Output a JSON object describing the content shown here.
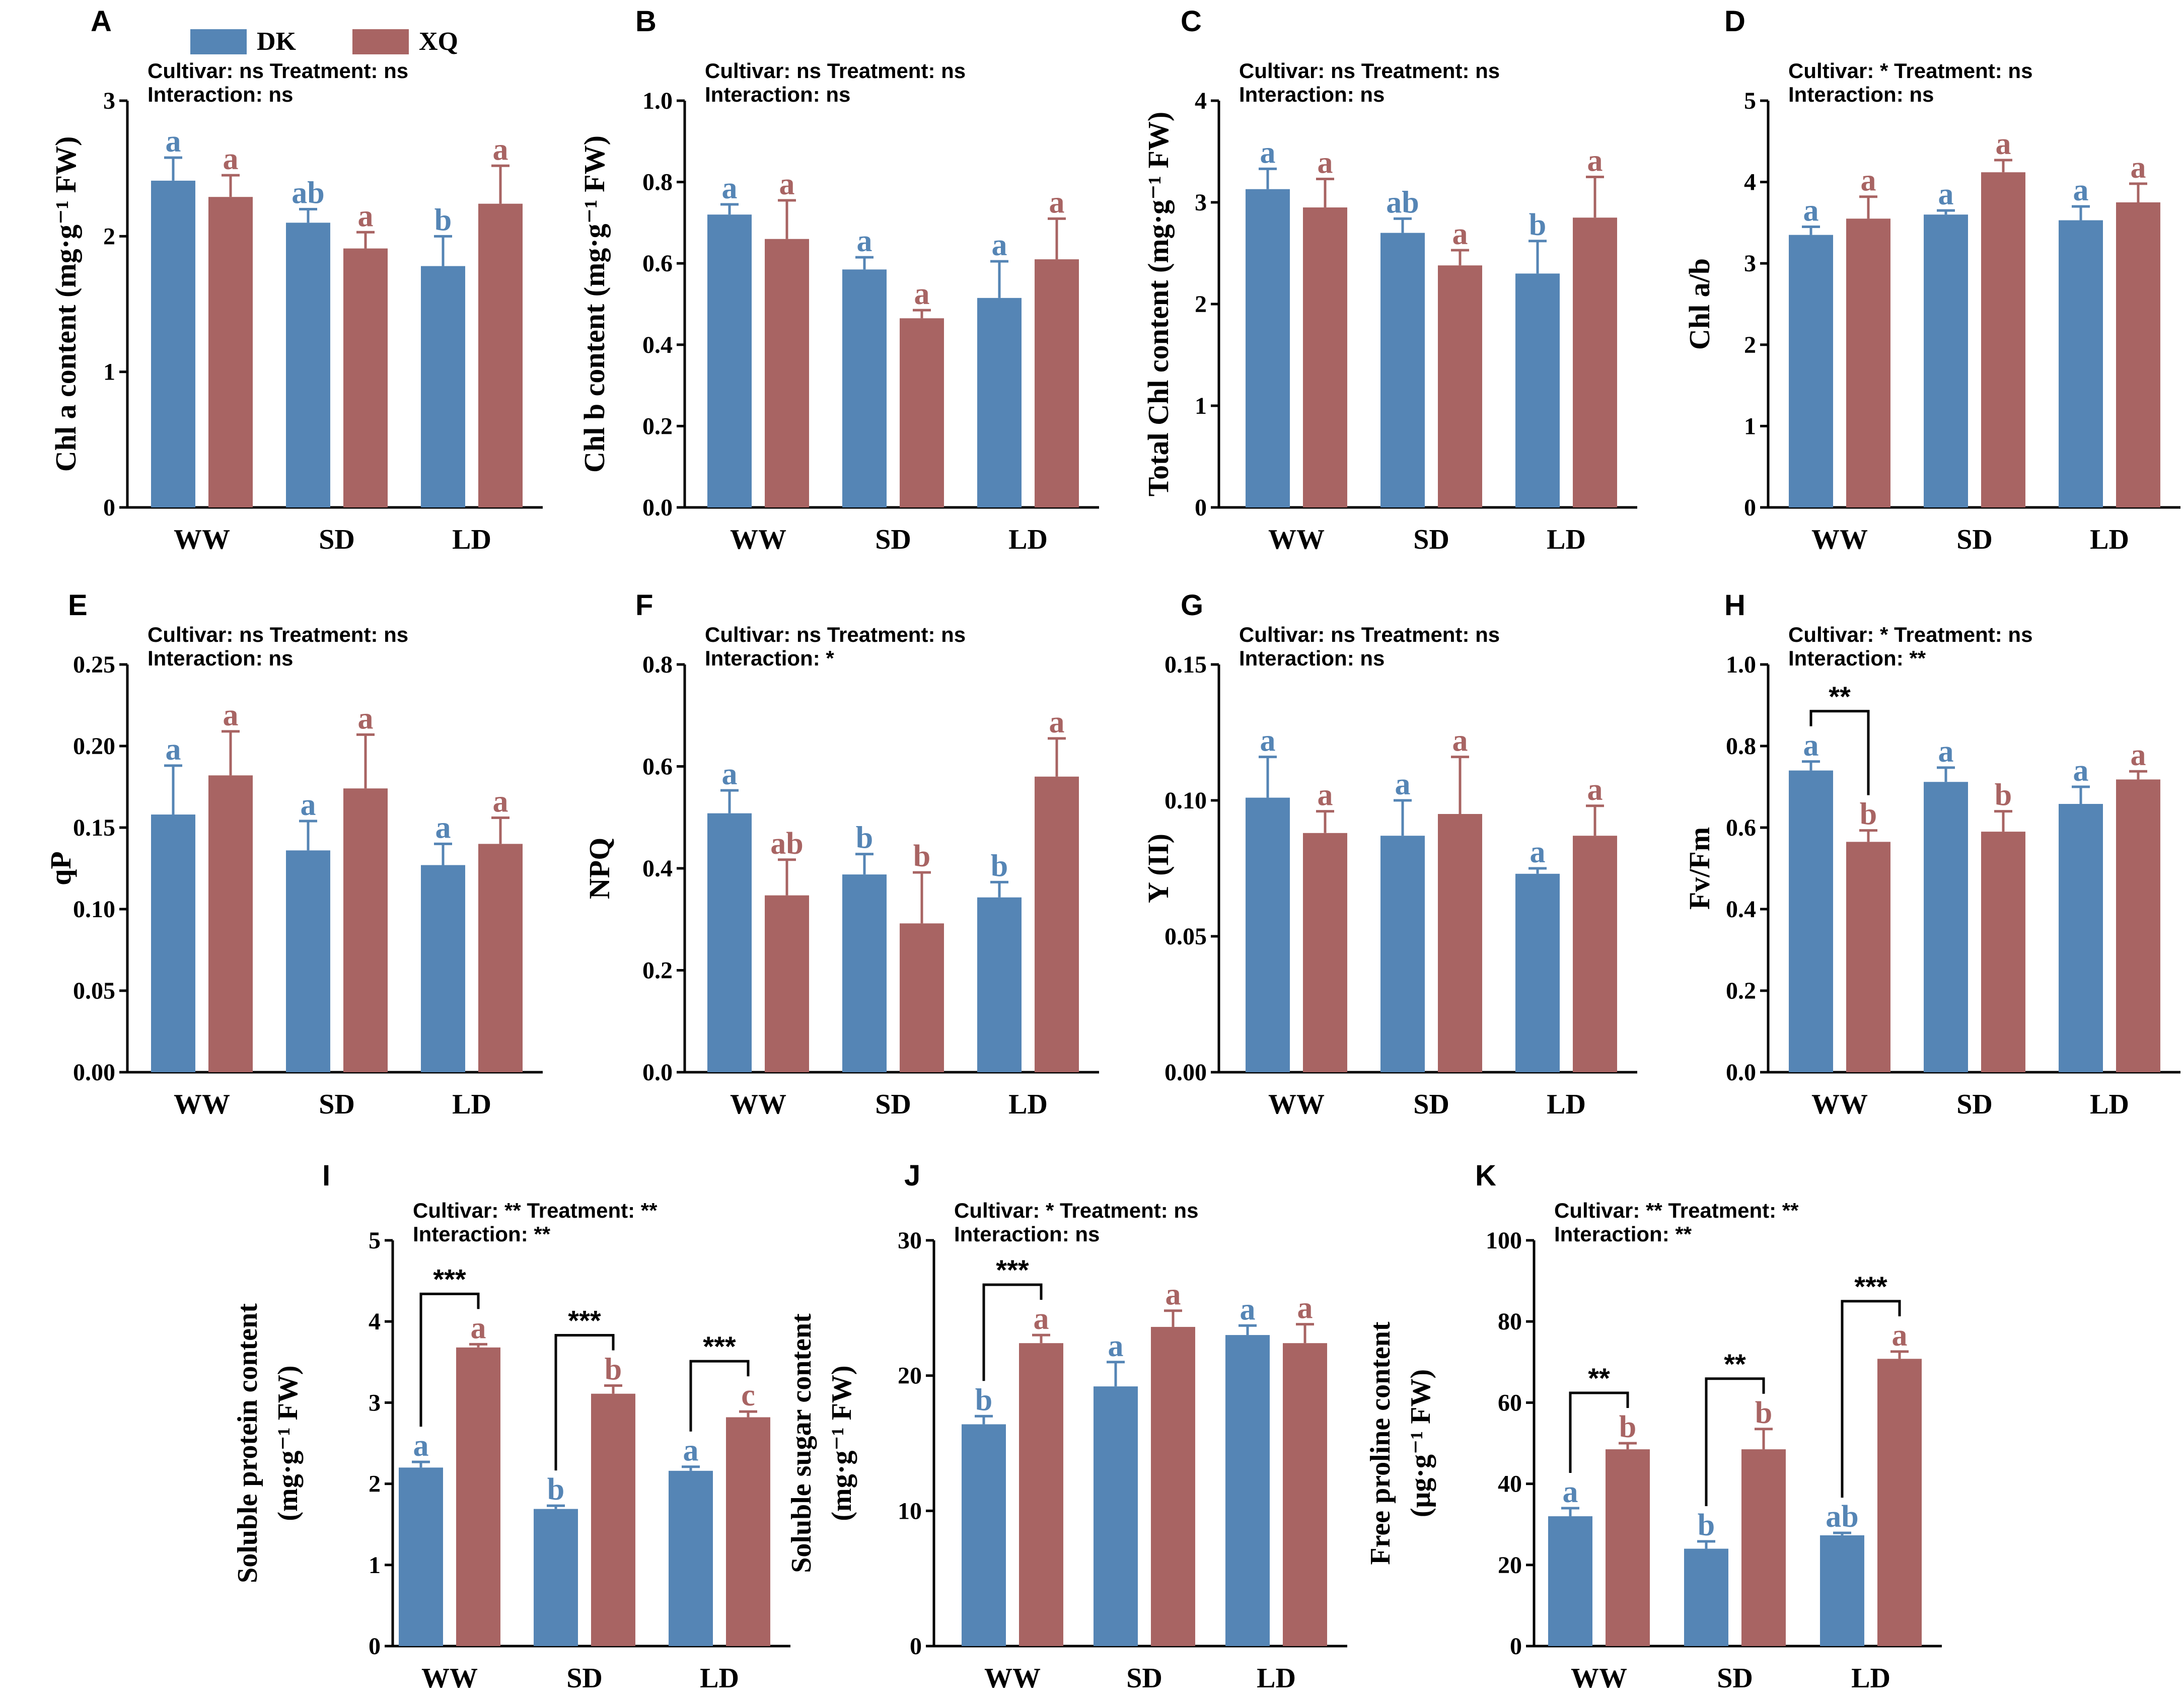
{
  "colors": {
    "DK": "#5585b5",
    "XQ": "#a86463",
    "axis": "#000000"
  },
  "legend": {
    "items": [
      {
        "key": "DK",
        "label": "DK"
      },
      {
        "key": "XQ",
        "label": "XQ"
      }
    ]
  },
  "chart_data": [
    {
      "type": "bar",
      "panel": "A",
      "ylabel": "Chl a content (mg·g⁻¹ FW)",
      "categories": [
        "WW",
        "SD",
        "LD"
      ],
      "ylim": [
        0,
        3
      ],
      "yticks": [
        "0",
        "1",
        "2",
        "3"
      ],
      "stats": [
        "Cultivar: ns  Treatment: ns",
        "Interaction: ns"
      ],
      "series": [
        {
          "name": "DK",
          "values": [
            2.41,
            2.1,
            1.78
          ],
          "errors": [
            0.17,
            0.1,
            0.22
          ],
          "letters": [
            "a",
            "ab",
            "b"
          ]
        },
        {
          "name": "XQ",
          "values": [
            2.29,
            1.91,
            2.24
          ],
          "errors": [
            0.16,
            0.12,
            0.28
          ],
          "letters": [
            "a",
            "a",
            "a"
          ]
        }
      ],
      "comparisons": []
    },
    {
      "type": "bar",
      "panel": "B",
      "ylabel": "Chl b content (mg·g⁻¹ FW)",
      "categories": [
        "WW",
        "SD",
        "LD"
      ],
      "ylim": [
        0,
        1
      ],
      "yticks": [
        "0.0",
        "0.2",
        "0.4",
        "0.6",
        "0.8",
        "1.0"
      ],
      "stats": [
        "Cultivar: ns  Treatment: ns",
        "Interaction: ns"
      ],
      "series": [
        {
          "name": "DK",
          "values": [
            0.72,
            0.585,
            0.515
          ],
          "errors": [
            0.025,
            0.03,
            0.09
          ],
          "letters": [
            "a",
            "a",
            "a"
          ]
        },
        {
          "name": "XQ",
          "values": [
            0.66,
            0.465,
            0.61
          ],
          "errors": [
            0.095,
            0.02,
            0.1
          ],
          "letters": [
            "a",
            "a",
            "a"
          ]
        }
      ],
      "comparisons": []
    },
    {
      "type": "bar",
      "panel": "C",
      "ylabel": "Total Chl content (mg·g⁻¹ FW)",
      "categories": [
        "WW",
        "SD",
        "LD"
      ],
      "ylim": [
        0,
        4
      ],
      "yticks": [
        "0",
        "1",
        "2",
        "3",
        "4"
      ],
      "stats": [
        "Cultivar: ns  Treatment: ns",
        "Interaction: ns"
      ],
      "series": [
        {
          "name": "DK",
          "values": [
            3.13,
            2.7,
            2.3
          ],
          "errors": [
            0.2,
            0.14,
            0.32
          ],
          "letters": [
            "a",
            "ab",
            "b"
          ]
        },
        {
          "name": "XQ",
          "values": [
            2.95,
            2.38,
            2.85
          ],
          "errors": [
            0.28,
            0.15,
            0.4
          ],
          "letters": [
            "a",
            "a",
            "a"
          ]
        }
      ],
      "comparisons": []
    },
    {
      "type": "bar",
      "panel": "D",
      "ylabel": "Chl a/b",
      "categories": [
        "WW",
        "SD",
        "LD"
      ],
      "ylim": [
        0,
        5
      ],
      "yticks": [
        "0",
        "1",
        "2",
        "3",
        "4",
        "5"
      ],
      "stats": [
        "Cultivar: *  Treatment: ns",
        "Interaction: ns"
      ],
      "series": [
        {
          "name": "DK",
          "values": [
            3.35,
            3.6,
            3.53
          ],
          "errors": [
            0.1,
            0.05,
            0.17
          ],
          "letters": [
            "a",
            "a",
            "a"
          ]
        },
        {
          "name": "XQ",
          "values": [
            3.55,
            4.12,
            3.75
          ],
          "errors": [
            0.27,
            0.15,
            0.23
          ],
          "letters": [
            "a",
            "a",
            "a"
          ]
        }
      ],
      "comparisons": []
    },
    {
      "type": "bar",
      "panel": "E",
      "ylabel": "qP",
      "categories": [
        "WW",
        "SD",
        "LD"
      ],
      "ylim": [
        0,
        0.25
      ],
      "yticks": [
        "0.00",
        "0.05",
        "0.10",
        "0.15",
        "0.20",
        "0.25"
      ],
      "stats": [
        "Cultivar: ns  Treatment: ns",
        "Interaction: ns"
      ],
      "series": [
        {
          "name": "DK",
          "values": [
            0.158,
            0.136,
            0.127
          ],
          "errors": [
            0.03,
            0.018,
            0.013
          ],
          "letters": [
            "a",
            "a",
            "a"
          ]
        },
        {
          "name": "XQ",
          "values": [
            0.182,
            0.174,
            0.14
          ],
          "errors": [
            0.027,
            0.033,
            0.016
          ],
          "letters": [
            "a",
            "a",
            "a"
          ]
        }
      ],
      "comparisons": []
    },
    {
      "type": "bar",
      "panel": "F",
      "ylabel": "NPQ",
      "categories": [
        "WW",
        "SD",
        "LD"
      ],
      "ylim": [
        0,
        0.8
      ],
      "yticks": [
        "0.0",
        "0.2",
        "0.4",
        "0.6",
        "0.8"
      ],
      "stats": [
        "Cultivar: ns  Treatment: ns",
        "Interaction: *"
      ],
      "series": [
        {
          "name": "DK",
          "values": [
            0.508,
            0.388,
            0.343
          ],
          "errors": [
            0.045,
            0.04,
            0.03
          ],
          "letters": [
            "a",
            "b",
            "b"
          ]
        },
        {
          "name": "XQ",
          "values": [
            0.347,
            0.292,
            0.58
          ],
          "errors": [
            0.07,
            0.1,
            0.075
          ],
          "letters": [
            "ab",
            "b",
            "a"
          ]
        }
      ],
      "comparisons": []
    },
    {
      "type": "bar",
      "panel": "G",
      "ylabel": "Y (II)",
      "categories": [
        "WW",
        "SD",
        "LD"
      ],
      "ylim": [
        0,
        0.15
      ],
      "yticks": [
        "0.00",
        "0.05",
        "0.10",
        "0.15"
      ],
      "stats": [
        "Cultivar: ns  Treatment: ns",
        "Interaction: ns"
      ],
      "series": [
        {
          "name": "DK",
          "values": [
            0.101,
            0.087,
            0.073
          ],
          "errors": [
            0.015,
            0.013,
            0.002
          ],
          "letters": [
            "a",
            "a",
            "a"
          ]
        },
        {
          "name": "XQ",
          "values": [
            0.088,
            0.095,
            0.087
          ],
          "errors": [
            0.008,
            0.021,
            0.011
          ],
          "letters": [
            "a",
            "a",
            "a"
          ]
        }
      ],
      "comparisons": []
    },
    {
      "type": "bar",
      "panel": "H",
      "ylabel": "Fv/Fm",
      "categories": [
        "WW",
        "SD",
        "LD"
      ],
      "ylim": [
        0,
        1
      ],
      "yticks": [
        "0.0",
        "0.2",
        "0.4",
        "0.6",
        "0.8",
        "1.0"
      ],
      "stats": [
        "Cultivar: *  Treatment: ns",
        "Interaction: **"
      ],
      "series": [
        {
          "name": "DK",
          "values": [
            0.74,
            0.712,
            0.658
          ],
          "errors": [
            0.022,
            0.035,
            0.042
          ],
          "letters": [
            "a",
            "a",
            "a"
          ]
        },
        {
          "name": "XQ",
          "values": [
            0.565,
            0.59,
            0.718
          ],
          "errors": [
            0.028,
            0.05,
            0.02
          ],
          "letters": [
            "b",
            "b",
            "a"
          ]
        }
      ],
      "comparisons": [
        {
          "category": "WW",
          "label": "**"
        }
      ]
    },
    {
      "type": "bar",
      "panel": "I",
      "ylabel": "Soluble protein content (mg·g⁻¹ FW)",
      "categories": [
        "WW",
        "SD",
        "LD"
      ],
      "ylim": [
        0,
        5
      ],
      "yticks": [
        "0",
        "1",
        "2",
        "3",
        "4",
        "5"
      ],
      "stats": [
        "Cultivar: **  Treatment: **",
        "Interaction: **"
      ],
      "series": [
        {
          "name": "DK",
          "values": [
            2.2,
            1.69,
            2.16
          ],
          "errors": [
            0.07,
            0.04,
            0.05
          ],
          "letters": [
            "a",
            "b",
            "a"
          ]
        },
        {
          "name": "XQ",
          "values": [
            3.68,
            3.11,
            2.82
          ],
          "errors": [
            0.04,
            0.1,
            0.07
          ],
          "letters": [
            "a",
            "b",
            "c"
          ]
        }
      ],
      "comparisons": [
        {
          "category": "WW",
          "label": "***"
        },
        {
          "category": "SD",
          "label": "***"
        },
        {
          "category": "LD",
          "label": "***"
        }
      ]
    },
    {
      "type": "bar",
      "panel": "J",
      "ylabel": "Soluble sugar content (mg·g⁻¹ FW)",
      "categories": [
        "WW",
        "SD",
        "LD"
      ],
      "ylim": [
        0,
        30
      ],
      "yticks": [
        "0",
        "10",
        "20",
        "30"
      ],
      "stats": [
        "Cultivar: *  Treatment: ns",
        "Interaction: ns"
      ],
      "series": [
        {
          "name": "DK",
          "values": [
            16.4,
            19.2,
            23.0
          ],
          "errors": [
            0.6,
            1.8,
            0.7
          ],
          "letters": [
            "b",
            "a",
            "a"
          ]
        },
        {
          "name": "XQ",
          "values": [
            22.4,
            23.6,
            22.4
          ],
          "errors": [
            0.6,
            1.2,
            1.4
          ],
          "letters": [
            "a",
            "a",
            "a"
          ]
        }
      ],
      "comparisons": [
        {
          "category": "WW",
          "label": "***"
        }
      ]
    },
    {
      "type": "bar",
      "panel": "K",
      "ylabel": "Free proline content (μg·g⁻¹ FW)",
      "categories": [
        "WW",
        "SD",
        "LD"
      ],
      "ylim": [
        0,
        100
      ],
      "yticks": [
        "0",
        "20",
        "40",
        "60",
        "80",
        "100"
      ],
      "stats": [
        "Cultivar: **  Treatment: **",
        "Interaction: **"
      ],
      "series": [
        {
          "name": "DK",
          "values": [
            32.0,
            24.0,
            27.3
          ],
          "errors": [
            2.0,
            1.8,
            0.6
          ],
          "letters": [
            "a",
            "b",
            "ab"
          ]
        },
        {
          "name": "XQ",
          "values": [
            48.5,
            48.5,
            70.8
          ],
          "errors": [
            1.5,
            5.0,
            1.8
          ],
          "letters": [
            "b",
            "b",
            "a"
          ]
        }
      ],
      "comparisons": [
        {
          "category": "WW",
          "label": "**"
        },
        {
          "category": "SD",
          "label": "**"
        },
        {
          "category": "LD",
          "label": "***"
        }
      ]
    }
  ]
}
